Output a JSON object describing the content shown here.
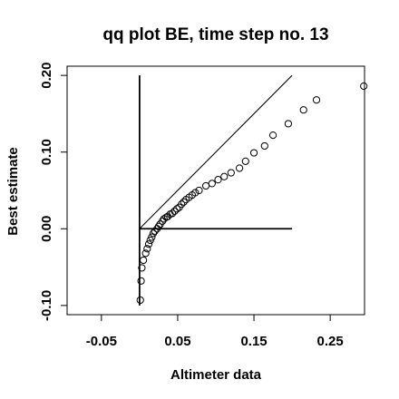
{
  "chart_data": {
    "type": "scatter",
    "title": "qq plot BE, time step no. 13",
    "xlabel": "Altimeter data",
    "ylabel": "Best estimate",
    "xlim": [
      -0.095,
      0.295
    ],
    "ylim": [
      -0.112,
      0.212
    ],
    "x_ticks": [
      -0.05,
      0.05,
      0.15,
      0.25
    ],
    "x_tick_labels": [
      "-0.05",
      "0.05",
      "0.15",
      "0.25"
    ],
    "y_ticks": [
      -0.1,
      0.0,
      0.1,
      0.2
    ],
    "y_tick_labels": [
      "-0.10",
      "0.00",
      "0.10",
      "0.20"
    ],
    "grid": false,
    "points": [
      [
        0.001,
        -0.093
      ],
      [
        0.002,
        -0.068
      ],
      [
        0.003,
        -0.051
      ],
      [
        0.005,
        -0.041
      ],
      [
        0.008,
        -0.032
      ],
      [
        0.01,
        -0.026
      ],
      [
        0.012,
        -0.02
      ],
      [
        0.014,
        -0.015
      ],
      [
        0.016,
        -0.011
      ],
      [
        0.018,
        -0.006
      ],
      [
        0.02,
        -0.003
      ],
      [
        0.023,
        0.0
      ],
      [
        0.025,
        0.003
      ],
      [
        0.027,
        0.006
      ],
      [
        0.03,
        0.01
      ],
      [
        0.032,
        0.013
      ],
      [
        0.035,
        0.015
      ],
      [
        0.037,
        0.016
      ],
      [
        0.04,
        0.019
      ],
      [
        0.043,
        0.02
      ],
      [
        0.046,
        0.023
      ],
      [
        0.049,
        0.026
      ],
      [
        0.052,
        0.028
      ],
      [
        0.055,
        0.032
      ],
      [
        0.058,
        0.035
      ],
      [
        0.061,
        0.038
      ],
      [
        0.065,
        0.041
      ],
      [
        0.069,
        0.044
      ],
      [
        0.073,
        0.047
      ],
      [
        0.078,
        0.05
      ],
      [
        0.087,
        0.056
      ],
      [
        0.095,
        0.059
      ],
      [
        0.103,
        0.064
      ],
      [
        0.111,
        0.068
      ],
      [
        0.12,
        0.073
      ],
      [
        0.131,
        0.079
      ],
      [
        0.139,
        0.088
      ],
      [
        0.15,
        0.099
      ],
      [
        0.164,
        0.108
      ],
      [
        0.175,
        0.122
      ],
      [
        0.195,
        0.137
      ],
      [
        0.215,
        0.155
      ],
      [
        0.232,
        0.168
      ],
      [
        0.294,
        0.186
      ]
    ],
    "reference_lines": [
      {
        "from": [
          0.0,
          0.0
        ],
        "to": [
          0.2,
          0.2
        ]
      },
      {
        "from": [
          0.0,
          0.0
        ],
        "to": [
          0.2,
          0.0
        ]
      },
      {
        "from": [
          0.0,
          -0.1
        ],
        "to": [
          0.0,
          0.2
        ]
      }
    ]
  }
}
